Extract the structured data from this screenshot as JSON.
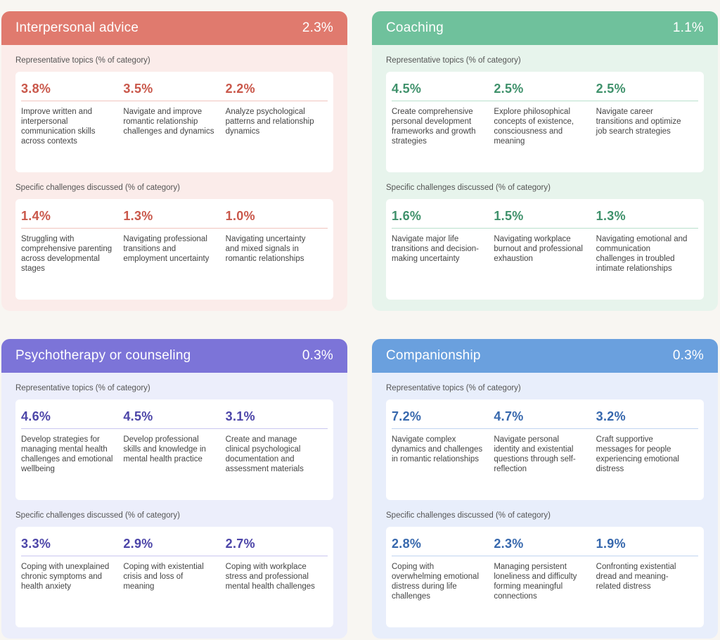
{
  "panels": [
    {
      "title": "Interpersonal advice",
      "share": "2.3%",
      "topics_label": "Representative topics (% of category)",
      "topics": [
        {
          "pct": "3.8%",
          "text": "Improve written and interpersonal communication skills across contexts"
        },
        {
          "pct": "3.5%",
          "text": "Navigate and improve romantic relationship challenges and dynamics"
        },
        {
          "pct": "2.2%",
          "text": "Analyze psychological patterns and relationship dynamics"
        }
      ],
      "challenges_label": "Specific challenges discussed (% of category)",
      "challenges": [
        {
          "pct": "1.4%",
          "text": "Struggling with comprehensive parenting across developmental stages"
        },
        {
          "pct": "1.3%",
          "text": "Navigating professional transitions and employment uncertainty"
        },
        {
          "pct": "1.0%",
          "text": "Navigating uncertainty and mixed signals in romantic relationships"
        }
      ]
    },
    {
      "title": "Coaching",
      "share": "1.1%",
      "topics_label": "Representative topics (% of category)",
      "topics": [
        {
          "pct": "4.5%",
          "text": "Create comprehensive personal development frameworks and growth strategies"
        },
        {
          "pct": "2.5%",
          "text": "Explore philosophical concepts of existence, consciousness and meaning"
        },
        {
          "pct": "2.5%",
          "text": "Navigate career transitions and optimize job search strategies"
        }
      ],
      "challenges_label": "Specific challenges discussed (% of category)",
      "challenges": [
        {
          "pct": "1.6%",
          "text": "Navigate major life transitions and decision-making uncertainty"
        },
        {
          "pct": "1.5%",
          "text": "Navigating workplace burnout and professional exhaustion"
        },
        {
          "pct": "1.3%",
          "text": "Navigating emotional and communication challenges in troubled intimate relationships"
        }
      ]
    },
    {
      "title": "Psychotherapy or counseling",
      "share": "0.3%",
      "topics_label": "Representative topics (% of category)",
      "topics": [
        {
          "pct": "4.6%",
          "text": "Develop strategies for managing mental health challenges and emotional wellbeing"
        },
        {
          "pct": "4.5%",
          "text": "Develop professional skills and knowledge in mental health practice"
        },
        {
          "pct": "3.1%",
          "text": "Create and manage clinical psychological documentation and assessment materials"
        }
      ],
      "challenges_label": "Specific challenges discussed (% of category)",
      "challenges": [
        {
          "pct": "3.3%",
          "text": "Coping with unexplained chronic symptoms and health anxiety"
        },
        {
          "pct": "2.9%",
          "text": "Coping with existential crisis and loss of meaning"
        },
        {
          "pct": "2.7%",
          "text": "Coping with workplace stress and professional mental health challenges"
        }
      ]
    },
    {
      "title": "Companionship",
      "share": "0.3%",
      "topics_label": "Representative topics (% of category)",
      "topics": [
        {
          "pct": "7.2%",
          "text": "Navigate complex dynamics and challenges in romantic relationships"
        },
        {
          "pct": "4.7%",
          "text": "Navigate personal identity and existential questions through self-reflection"
        },
        {
          "pct": "3.2%",
          "text": "Craft supportive messages for people experiencing emotional distress"
        }
      ],
      "challenges_label": "Specific challenges discussed (% of category)",
      "challenges": [
        {
          "pct": "2.8%",
          "text": "Coping with overwhelming emotional distress during life challenges"
        },
        {
          "pct": "2.3%",
          "text": "Managing persistent loneliness and difficulty forming meaningful connections"
        },
        {
          "pct": "1.9%",
          "text": "Confronting existential dread and meaning-related distress"
        }
      ]
    }
  ]
}
